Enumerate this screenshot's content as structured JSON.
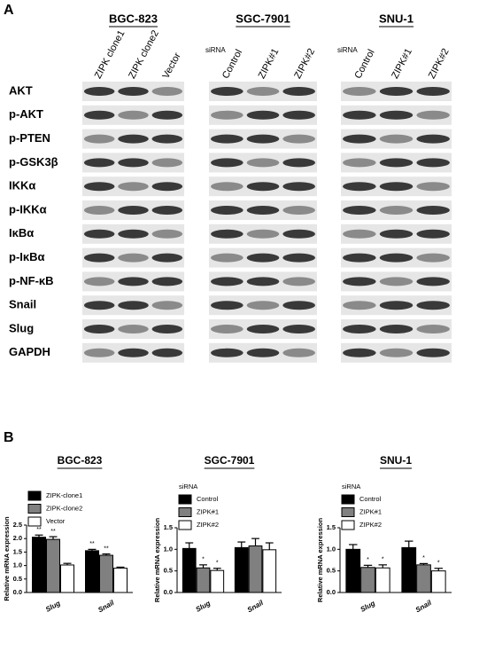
{
  "panel_a": {
    "label": "A",
    "groups": [
      {
        "title": "BGC-823",
        "lanes": [
          "ZIPK clone1",
          "ZIPK clone2",
          "Vector"
        ]
      },
      {
        "title": "SGC-7901",
        "prefix": "siRNA",
        "lanes": [
          "Control",
          "ZIPK#1",
          "ZIPK#2"
        ]
      },
      {
        "title": "SNU-1",
        "prefix": "siRNA",
        "lanes": [
          "Control",
          "ZIPK#1",
          "ZIPK#2"
        ]
      }
    ],
    "proteins": [
      "AKT",
      "p-AKT",
      "p-PTEN",
      "p-GSK3β",
      "IKKα",
      "p-IKKα",
      "IκBα",
      "p-IκBα",
      "p-NF-κB",
      "Snail",
      "Slug",
      "GAPDH"
    ]
  },
  "panel_b": {
    "label": "B"
  },
  "chart_data": [
    {
      "type": "bar",
      "title": "BGC-823",
      "y_label": "Relative mRNA expression",
      "categories": [
        "Slug",
        "Snail"
      ],
      "series": [
        {
          "name": "ZIPK-clone1",
          "color": "#000000",
          "values": [
            2.05,
            1.55
          ],
          "errors": [
            0.08,
            0.05
          ],
          "significance": [
            "**",
            "**"
          ]
        },
        {
          "name": "ZIPK-clone2",
          "color": "#808080",
          "values": [
            1.97,
            1.38
          ],
          "errors": [
            0.1,
            0.05
          ],
          "significance": [
            "**",
            "**"
          ]
        },
        {
          "name": "Vector",
          "color": "#ffffff",
          "values": [
            1.02,
            0.9
          ],
          "errors": [
            0.06,
            0.04
          ],
          "significance": [
            null,
            null
          ]
        }
      ],
      "ylim": [
        0,
        2.5
      ],
      "yticks": [
        {
          "value": 0,
          "label": "0.0"
        },
        0.5,
        {
          "value": 1,
          "label": "1.0"
        },
        1.5,
        {
          "value": 2,
          "label": "2.0"
        },
        2.5
      ]
    },
    {
      "type": "bar",
      "title": "SGC-7901",
      "y_label": "Relative mRNA expression",
      "legend_title": "siRNA",
      "categories": [
        "Slug",
        "Snail"
      ],
      "series": [
        {
          "name": "Control",
          "color": "#000000",
          "values": [
            1.02,
            1.04
          ],
          "errors": [
            0.13,
            0.13
          ],
          "significance": [
            null,
            null
          ]
        },
        {
          "name": "ZIPK#1",
          "color": "#808080",
          "values": [
            0.57,
            1.08
          ],
          "errors": [
            0.07,
            0.17
          ],
          "significance": [
            "*",
            null
          ]
        },
        {
          "name": "ZIPK#2",
          "color": "#ffffff",
          "values": [
            0.51,
            0.99
          ],
          "errors": [
            0.05,
            0.16
          ],
          "significance": [
            "*",
            null
          ]
        }
      ],
      "ylim": [
        0,
        1.5
      ],
      "yticks": [
        {
          "value": 0,
          "label": "0.0"
        },
        0.5,
        {
          "value": 1,
          "label": "1.0"
        },
        1.5
      ]
    },
    {
      "type": "bar",
      "title": "SNU-1",
      "y_label": "Relative mRNA expression",
      "legend_title": "siRNA",
      "categories": [
        "Slug",
        "Snail"
      ],
      "series": [
        {
          "name": "Control",
          "color": "#000000",
          "values": [
            1.0,
            1.04
          ],
          "errors": [
            0.11,
            0.15
          ],
          "significance": [
            null,
            null
          ]
        },
        {
          "name": "ZIPK#1",
          "color": "#808080",
          "values": [
            0.58,
            0.64
          ],
          "errors": [
            0.05,
            0.03
          ],
          "significance": [
            "*",
            "*"
          ]
        },
        {
          "name": "ZIPK#2",
          "color": "#ffffff",
          "values": [
            0.57,
            0.5
          ],
          "errors": [
            0.07,
            0.06
          ],
          "significance": [
            "*",
            "*"
          ]
        }
      ],
      "ylim": [
        0,
        1.5
      ],
      "yticks": [
        {
          "value": 0,
          "label": "0.0"
        },
        0.5,
        {
          "value": 1,
          "label": "1.0"
        },
        1.5
      ]
    }
  ]
}
